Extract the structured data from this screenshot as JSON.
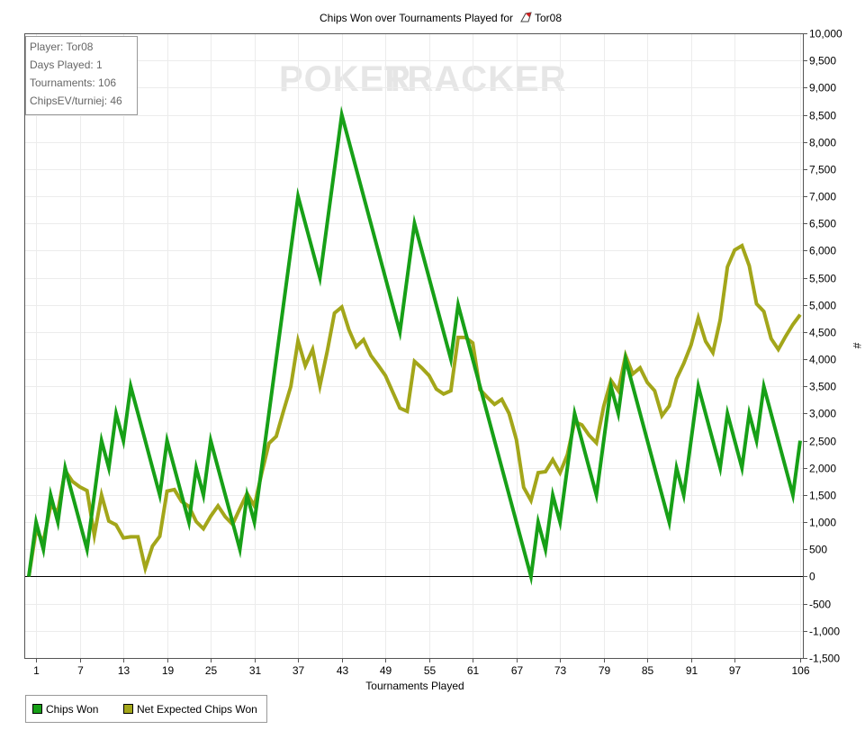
{
  "title_prefix": "Chips Won over Tournaments Played for",
  "player_name": "Tor08",
  "watermark": {
    "part1": "POKER",
    "part2": "TRACKER"
  },
  "info": {
    "player": "Player: Tor08",
    "days": "Days Played: 1",
    "tournaments": "Tournaments: 106",
    "chipsev": "ChipsEV/turniej: 46"
  },
  "legend": [
    {
      "label": "Chips Won",
      "color": "#17a017"
    },
    {
      "label": "Net Expected Chips Won",
      "color": "#a3a61a"
    }
  ],
  "chart_data": {
    "type": "line",
    "xlabel": "Tournaments Played",
    "ylabel": "#",
    "x_ticks": [
      1,
      7,
      13,
      19,
      25,
      31,
      37,
      43,
      49,
      55,
      61,
      67,
      73,
      79,
      85,
      91,
      97,
      106
    ],
    "y_ticks": [
      -1500,
      -1000,
      -500,
      0,
      500,
      1000,
      1500,
      2000,
      2500,
      3000,
      3500,
      4000,
      4500,
      5000,
      5500,
      6000,
      6500,
      7000,
      7500,
      8000,
      8500,
      9000,
      9500,
      10000
    ],
    "y_tick_labels": [
      "-1,500",
      "-1,000",
      "-500",
      "0",
      "500",
      "1,000",
      "1,500",
      "2,000",
      "2,500",
      "3,000",
      "3,500",
      "4,000",
      "4,500",
      "5,000",
      "5,500",
      "6,000",
      "6,500",
      "7,000",
      "7,500",
      "8,000",
      "8,500",
      "9,000",
      "9,500",
      "10,000"
    ],
    "xlim": [
      0,
      106
    ],
    "ylim": [
      -1500,
      10000
    ],
    "grid": true,
    "series": [
      {
        "name": "Chips Won",
        "color": "#17a017",
        "points": [
          [
            0,
            0
          ],
          [
            1,
            1000
          ],
          [
            2,
            500
          ],
          [
            3,
            1500
          ],
          [
            4,
            1000
          ],
          [
            5,
            2000
          ],
          [
            6,
            1500
          ],
          [
            7,
            1000
          ],
          [
            8,
            500
          ],
          [
            9,
            1500
          ],
          [
            10,
            2500
          ],
          [
            11,
            2000
          ],
          [
            12,
            3000
          ],
          [
            13,
            2500
          ],
          [
            14,
            3500
          ],
          [
            15,
            3000
          ],
          [
            16,
            2500
          ],
          [
            17,
            2000
          ],
          [
            18,
            1500
          ],
          [
            19,
            2500
          ],
          [
            20,
            2000
          ],
          [
            21,
            1500
          ],
          [
            22,
            1000
          ],
          [
            23,
            2000
          ],
          [
            24,
            1500
          ],
          [
            25,
            2500
          ],
          [
            26,
            2000
          ],
          [
            27,
            1500
          ],
          [
            28,
            1000
          ],
          [
            29,
            500
          ],
          [
            30,
            1500
          ],
          [
            31,
            1000
          ],
          [
            37,
            7000
          ],
          [
            40,
            5500
          ],
          [
            43,
            8500
          ],
          [
            51,
            4500
          ],
          [
            53,
            6500
          ],
          [
            58,
            4000
          ],
          [
            59,
            5000
          ],
          [
            69,
            0
          ],
          [
            70,
            1000
          ],
          [
            71,
            500
          ],
          [
            72,
            1500
          ],
          [
            73,
            1000
          ],
          [
            75,
            3000
          ],
          [
            77,
            2000
          ],
          [
            78,
            1500
          ],
          [
            80,
            3500
          ],
          [
            81,
            3000
          ],
          [
            82,
            4000
          ],
          [
            88,
            1000
          ],
          [
            89,
            2000
          ],
          [
            90,
            1500
          ],
          [
            92,
            3500
          ],
          [
            95,
            2000
          ],
          [
            96,
            3000
          ],
          [
            98,
            2000
          ],
          [
            99,
            3000
          ],
          [
            100,
            2500
          ],
          [
            101,
            3500
          ],
          [
            105,
            1500
          ],
          [
            106,
            2500
          ]
        ]
      },
      {
        "name": "Net Expected Chips Won",
        "color": "#a3a61a",
        "points": [
          [
            0,
            0
          ],
          [
            1,
            850
          ],
          [
            2,
            650
          ],
          [
            3,
            1300
          ],
          [
            4,
            1200
          ],
          [
            5,
            1950
          ],
          [
            6,
            1750
          ],
          [
            7,
            1650
          ],
          [
            8,
            1580
          ],
          [
            9,
            760
          ],
          [
            10,
            1500
          ],
          [
            11,
            1020
          ],
          [
            12,
            950
          ],
          [
            13,
            710
          ],
          [
            14,
            730
          ],
          [
            15,
            730
          ],
          [
            16,
            150
          ],
          [
            17,
            560
          ],
          [
            18,
            740
          ],
          [
            19,
            1570
          ],
          [
            20,
            1600
          ],
          [
            21,
            1380
          ],
          [
            22,
            1290
          ],
          [
            23,
            1010
          ],
          [
            24,
            880
          ],
          [
            25,
            1110
          ],
          [
            26,
            1300
          ],
          [
            27,
            1100
          ],
          [
            28,
            960
          ],
          [
            29,
            1250
          ],
          [
            30,
            1530
          ],
          [
            31,
            1300
          ],
          [
            32,
            1900
          ],
          [
            33,
            2450
          ],
          [
            34,
            2580
          ],
          [
            35,
            3050
          ],
          [
            36,
            3500
          ],
          [
            37,
            4340
          ],
          [
            38,
            3880
          ],
          [
            39,
            4180
          ],
          [
            40,
            3510
          ],
          [
            41,
            4140
          ],
          [
            42,
            4850
          ],
          [
            43,
            4960
          ],
          [
            44,
            4540
          ],
          [
            45,
            4230
          ],
          [
            46,
            4360
          ],
          [
            47,
            4070
          ],
          [
            48,
            3890
          ],
          [
            49,
            3700
          ],
          [
            50,
            3400
          ],
          [
            51,
            3100
          ],
          [
            52,
            3040
          ],
          [
            53,
            3960
          ],
          [
            54,
            3840
          ],
          [
            55,
            3700
          ],
          [
            56,
            3450
          ],
          [
            57,
            3360
          ],
          [
            58,
            3420
          ],
          [
            59,
            4400
          ],
          [
            60,
            4400
          ],
          [
            61,
            4300
          ],
          [
            62,
            3440
          ],
          [
            63,
            3300
          ],
          [
            64,
            3170
          ],
          [
            65,
            3260
          ],
          [
            66,
            3000
          ],
          [
            67,
            2520
          ],
          [
            68,
            1640
          ],
          [
            69,
            1400
          ],
          [
            70,
            1910
          ],
          [
            71,
            1930
          ],
          [
            72,
            2150
          ],
          [
            73,
            1910
          ],
          [
            74,
            2240
          ],
          [
            75,
            2850
          ],
          [
            76,
            2790
          ],
          [
            77,
            2600
          ],
          [
            78,
            2460
          ],
          [
            79,
            3130
          ],
          [
            80,
            3610
          ],
          [
            81,
            3420
          ],
          [
            82,
            4070
          ],
          [
            83,
            3730
          ],
          [
            84,
            3840
          ],
          [
            85,
            3570
          ],
          [
            86,
            3420
          ],
          [
            87,
            2960
          ],
          [
            88,
            3140
          ],
          [
            89,
            3640
          ],
          [
            90,
            3920
          ],
          [
            91,
            4260
          ],
          [
            92,
            4760
          ],
          [
            93,
            4330
          ],
          [
            94,
            4120
          ],
          [
            95,
            4720
          ],
          [
            96,
            5700
          ],
          [
            97,
            6010
          ],
          [
            98,
            6090
          ],
          [
            99,
            5720
          ],
          [
            100,
            5020
          ],
          [
            101,
            4880
          ],
          [
            102,
            4380
          ],
          [
            103,
            4180
          ],
          [
            104,
            4420
          ],
          [
            105,
            4640
          ],
          [
            106,
            4820
          ]
        ]
      }
    ]
  }
}
